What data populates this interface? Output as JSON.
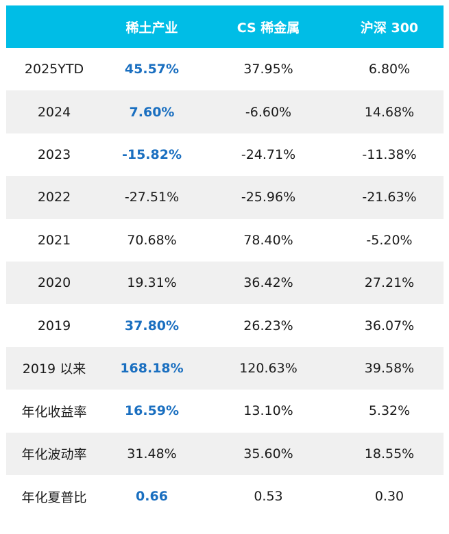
{
  "table": {
    "headers": [
      "",
      "稀土产业",
      "CS 稀金属",
      "沪深 300"
    ],
    "rows": [
      {
        "label": "2025YTD",
        "values": [
          "45.57%",
          "37.95%",
          "6.80%"
        ],
        "highlight": [
          true,
          false,
          false
        ]
      },
      {
        "label": "2024",
        "values": [
          "7.60%",
          "-6.60%",
          "14.68%"
        ],
        "highlight": [
          true,
          false,
          false
        ]
      },
      {
        "label": "2023",
        "values": [
          "-15.82%",
          "-24.71%",
          "-11.38%"
        ],
        "highlight": [
          true,
          false,
          false
        ]
      },
      {
        "label": "2022",
        "values": [
          "-27.51%",
          "-25.96%",
          "-21.63%"
        ],
        "highlight": [
          false,
          false,
          false
        ]
      },
      {
        "label": "2021",
        "values": [
          "70.68%",
          "78.40%",
          "-5.20%"
        ],
        "highlight": [
          false,
          false,
          false
        ]
      },
      {
        "label": "2020",
        "values": [
          "19.31%",
          "36.42%",
          "27.21%"
        ],
        "highlight": [
          false,
          false,
          false
        ]
      },
      {
        "label": "2019",
        "values": [
          "37.80%",
          "26.23%",
          "36.07%"
        ],
        "highlight": [
          true,
          false,
          false
        ]
      },
      {
        "label": "2019 以来",
        "values": [
          "168.18%",
          "120.63%",
          "39.58%"
        ],
        "highlight": [
          true,
          false,
          false
        ]
      },
      {
        "label": "年化收益率",
        "values": [
          "16.59%",
          "13.10%",
          "5.32%"
        ],
        "highlight": [
          true,
          false,
          false
        ]
      },
      {
        "label": "年化波动率",
        "values": [
          "31.48%",
          "35.60%",
          "18.55%"
        ],
        "highlight": [
          false,
          false,
          false
        ]
      },
      {
        "label": "年化夏普比",
        "values": [
          "0.66",
          "0.53",
          "0.30"
        ],
        "highlight": [
          true,
          false,
          false
        ]
      }
    ]
  },
  "colors": {
    "header_bg": "#00bde6",
    "header_text": "#ffffff",
    "highlight_text": "#1a6fc0",
    "body_text": "#1a1a1a",
    "stripe_bg": "#f0f0f0"
  }
}
